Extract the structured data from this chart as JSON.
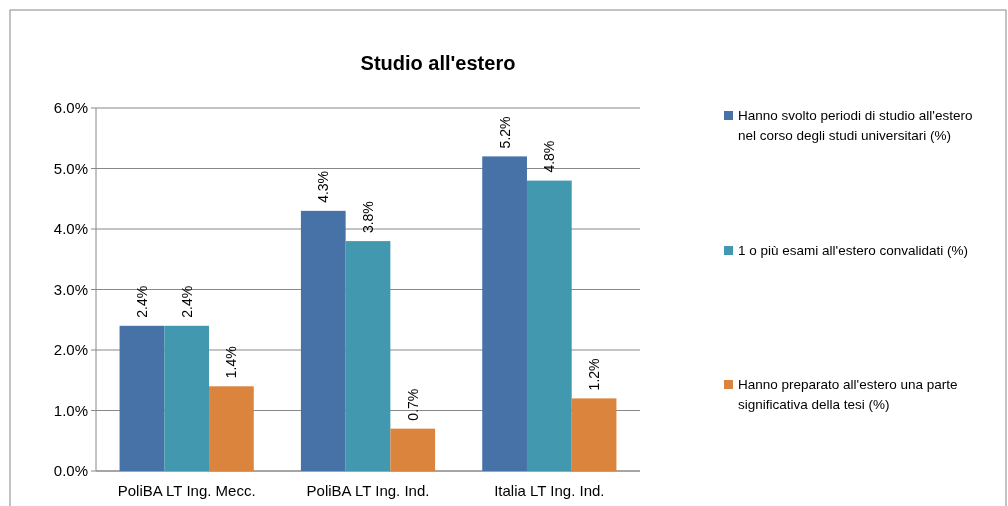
{
  "chart_data": {
    "type": "bar",
    "title": "Studio all'estero",
    "categories": [
      "PoliBA LT Ing. Mecc.",
      "PoliBA LT Ing. Ind.",
      "Italia LT Ing. Ind."
    ],
    "series": [
      {
        "name": "Hanno svolto periodi di studio all'estero nel corso degli studi universitari (%)",
        "color": "#4672a8",
        "values": [
          2.4,
          4.3,
          5.2
        ],
        "value_labels": [
          "2.4%",
          "4.3%",
          "5.2%"
        ]
      },
      {
        "name": "1 o più esami all'estero convalidati (%)",
        "color": "#4198af",
        "values": [
          2.4,
          3.8,
          4.8
        ],
        "value_labels": [
          "2.4%",
          "3.8%",
          "4.8%"
        ]
      },
      {
        "name": "Hanno preparato all'estero una parte significativa della tesi (%)",
        "color": "#db843d",
        "values": [
          1.4,
          0.7,
          1.2
        ],
        "value_labels": [
          "1.4%",
          "0.7%",
          "1.2%"
        ]
      }
    ],
    "ylim": [
      0,
      6
    ],
    "yticks": [
      {
        "value": 0,
        "label": "0.0%"
      },
      {
        "value": 1,
        "label": "1.0%"
      },
      {
        "value": 2,
        "label": "2.0%"
      },
      {
        "value": 3,
        "label": "3.0%"
      },
      {
        "value": 4,
        "label": "4.0%"
      },
      {
        "value": 5,
        "label": "5.0%"
      },
      {
        "value": 6,
        "label": "6.0%"
      }
    ],
    "grid": "y",
    "legend": "right"
  }
}
